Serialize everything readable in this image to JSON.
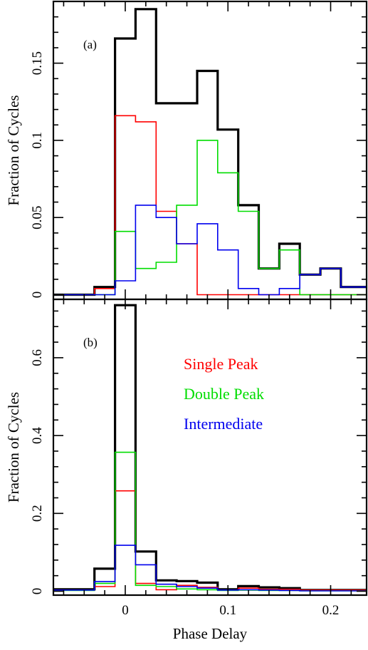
{
  "figure": {
    "xlabel": "Phase Delay",
    "colors": {
      "total": "#000000",
      "single": "#ff0000",
      "double": "#00dd00",
      "intermediate": "#0000ee"
    }
  },
  "chart_data": [
    {
      "type": "step",
      "panel_label": "(a)",
      "xlabel": "Phase Delay",
      "ylabel": "Fraction of Cycles",
      "xlim": [
        -0.07,
        0.235
      ],
      "ylim": [
        -0.003,
        0.19
      ],
      "xticks": [
        0,
        0.1,
        0.2
      ],
      "xtick_labels": [
        "0",
        "0.1",
        "0.2"
      ],
      "yticks": [
        0,
        0.05,
        0.1,
        0.15
      ],
      "ytick_labels": [
        "0",
        "0.05",
        "0.1",
        "0.15"
      ],
      "bin_edges": [
        -0.07,
        -0.05,
        -0.03,
        -0.01,
        0.01,
        0.03,
        0.05,
        0.07,
        0.09,
        0.11,
        0.13,
        0.15,
        0.17,
        0.19,
        0.21,
        0.235
      ],
      "series": [
        {
          "key": "total",
          "values": [
            0,
            0,
            0.005,
            0.166,
            0.185,
            0.124,
            0.124,
            0.145,
            0.107,
            0.058,
            0.017,
            0.033,
            0.013,
            0.017,
            0.005
          ],
          "color": "#000000"
        },
        {
          "key": "single",
          "name": "Single Peak",
          "values": [
            0,
            0,
            0.004,
            0.116,
            0.112,
            0.054,
            0.033,
            0,
            0,
            0,
            0,
            0,
            0,
            0,
            0
          ],
          "color": "#ff0000"
        },
        {
          "key": "double",
          "name": "Double Peak",
          "values": [
            0,
            0,
            0,
            0.041,
            0.017,
            0.021,
            0.058,
            0.1,
            0.079,
            0.054,
            0.017,
            0.029,
            0,
            0,
            0
          ],
          "color": "#00dd00"
        },
        {
          "key": "intermediate",
          "name": "Intermediate",
          "values": [
            0,
            0,
            0,
            0.009,
            0.058,
            0.05,
            0.033,
            0.046,
            0.029,
            0.004,
            0,
            0.004,
            0.013,
            0.017,
            0.005
          ],
          "color": "#0000ee"
        }
      ]
    },
    {
      "type": "step",
      "panel_label": "(b)",
      "xlabel": "Phase Delay",
      "ylabel": "Fraction of Cycles",
      "xlim": [
        -0.07,
        0.235
      ],
      "ylim": [
        -0.01,
        0.75
      ],
      "xticks": [
        0,
        0.1,
        0.2
      ],
      "xtick_labels": [
        "0",
        "0.1",
        "0.2"
      ],
      "yticks": [
        0,
        0.2,
        0.4,
        0.6
      ],
      "ytick_labels": [
        "0",
        "0.2",
        "0.4",
        "0.6"
      ],
      "bin_edges": [
        -0.07,
        -0.05,
        -0.03,
        -0.01,
        0.01,
        0.03,
        0.05,
        0.07,
        0.09,
        0.11,
        0.13,
        0.15,
        0.17,
        0.19,
        0.21,
        0.235
      ],
      "series": [
        {
          "key": "total",
          "values": [
            0.005,
            0.005,
            0.058,
            0.735,
            0.102,
            0.028,
            0.026,
            0.022,
            0.005,
            0.013,
            0.01,
            0.008,
            0.003,
            0.003,
            0.003
          ],
          "color": "#000000"
        },
        {
          "key": "single",
          "name": "Single Peak",
          "values": [
            0.003,
            0.003,
            0.012,
            0.258,
            0.02,
            0.004,
            0.015,
            0.01,
            0.003,
            0.008,
            0.005,
            0.005,
            0.003,
            0.003,
            0.003
          ],
          "color": "#ff0000"
        },
        {
          "key": "double",
          "name": "Double Peak",
          "values": [
            0.002,
            0.002,
            0.02,
            0.357,
            0.015,
            0.012,
            0.006,
            0.004,
            0.002,
            0.003,
            0.002,
            0.002,
            0.001,
            0.001,
            0.001
          ],
          "color": "#00dd00"
        },
        {
          "key": "intermediate",
          "name": "Intermediate",
          "values": [
            0.003,
            0.003,
            0.025,
            0.118,
            0.068,
            0.018,
            0.012,
            0.008,
            0.003,
            0.004,
            0.003,
            0.002,
            0.001,
            0.001,
            0.001
          ],
          "color": "#0000ee"
        }
      ],
      "legend": [
        "Single Peak",
        "Double Peak",
        "Intermediate"
      ]
    }
  ]
}
